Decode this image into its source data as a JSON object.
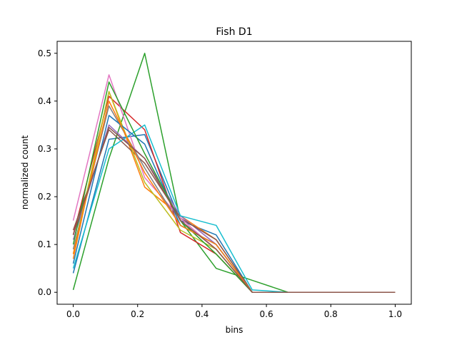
{
  "chart_data": {
    "type": "line",
    "title": "Fish D1",
    "xlabel": "bins",
    "ylabel": "normalized count",
    "xlim": [
      -0.05,
      1.05
    ],
    "ylim": [
      -0.025,
      0.525
    ],
    "xticks": [
      "0.0",
      "0.2",
      "0.4",
      "0.6",
      "0.8",
      "1.0"
    ],
    "yticks": [
      "0.0",
      "0.1",
      "0.2",
      "0.3",
      "0.4",
      "0.5"
    ],
    "grid": false,
    "legend": "none",
    "x": [
      0.0,
      0.111,
      0.222,
      0.333,
      0.444,
      0.556,
      0.667,
      0.778,
      0.889,
      1.0
    ],
    "series": [
      {
        "color": "#1f77b4",
        "values": [
          0.04,
          0.32,
          0.33,
          0.15,
          0.12,
          0.0,
          0.0,
          0.0,
          0.0,
          0.0
        ]
      },
      {
        "color": "#ff7f0e",
        "values": [
          0.07,
          0.42,
          0.22,
          0.16,
          0.11,
          0.0,
          0.0,
          0.0,
          0.0,
          0.0
        ]
      },
      {
        "color": "#2ca02c",
        "values": [
          0.005,
          0.28,
          0.5,
          0.15,
          0.05,
          0.025,
          0.0,
          0.0,
          0.0,
          0.0
        ]
      },
      {
        "color": "#d62728",
        "values": [
          0.12,
          0.41,
          0.34,
          0.125,
          0.08,
          0.0,
          0.0,
          0.0,
          0.0,
          0.0
        ]
      },
      {
        "color": "#9467bd",
        "values": [
          0.11,
          0.35,
          0.28,
          0.16,
          0.1,
          0.0,
          0.0,
          0.0,
          0.0,
          0.0
        ]
      },
      {
        "color": "#8c564b",
        "values": [
          0.13,
          0.34,
          0.27,
          0.155,
          0.11,
          0.0,
          0.0,
          0.0,
          0.0,
          0.0
        ]
      },
      {
        "color": "#e377c2",
        "values": [
          0.15,
          0.455,
          0.24,
          0.155,
          0.09,
          0.0,
          0.0,
          0.0,
          0.0,
          0.0
        ]
      },
      {
        "color": "#7f7f7f",
        "values": [
          0.09,
          0.39,
          0.26,
          0.14,
          0.1,
          0.0,
          0.0,
          0.0,
          0.0,
          0.0
        ]
      },
      {
        "color": "#bcbd22",
        "values": [
          0.08,
          0.42,
          0.23,
          0.13,
          0.09,
          0.0,
          0.0,
          0.0,
          0.0,
          0.0
        ]
      },
      {
        "color": "#17becf",
        "values": [
          0.05,
          0.3,
          0.35,
          0.16,
          0.14,
          0.005,
          0.0,
          0.0,
          0.0,
          0.0
        ]
      },
      {
        "color": "#1f77b4",
        "values": [
          0.06,
          0.37,
          0.31,
          0.14,
          0.1,
          0.0,
          0.0,
          0.0,
          0.0,
          0.0
        ]
      },
      {
        "color": "#2ca02c",
        "values": [
          0.1,
          0.44,
          0.29,
          0.15,
          0.08,
          0.0,
          0.0,
          0.0,
          0.0,
          0.0
        ]
      },
      {
        "color": "#ff7f0e",
        "values": [
          0.08,
          0.4,
          0.25,
          0.14,
          0.1,
          0.0,
          0.0,
          0.0,
          0.0,
          0.0
        ]
      },
      {
        "color": "#8c564b",
        "values": [
          0.12,
          0.345,
          0.28,
          0.15,
          0.09,
          0.0,
          0.0,
          0.0,
          0.0,
          0.0
        ]
      }
    ]
  }
}
